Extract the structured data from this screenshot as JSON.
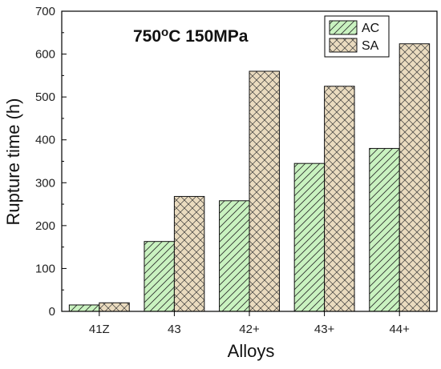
{
  "chart_data": {
    "type": "bar",
    "title": {
      "main": "750",
      "superscript": "o",
      "rest": "C 150MPa"
    },
    "xlabel": "Alloys",
    "ylabel": "Rupture time (h)",
    "categories": [
      "41Z",
      "43",
      "42+",
      "43+",
      "44+"
    ],
    "ylim": [
      0,
      700
    ],
    "yticks": [
      "0",
      "100",
      "200",
      "300",
      "400",
      "500",
      "600",
      "700"
    ],
    "legend_position": "top-right",
    "series": [
      {
        "name": "AC",
        "values": [
          15,
          163,
          258,
          345,
          380
        ],
        "color": "#c9f2c0",
        "pattern": "diagonal-hatch"
      },
      {
        "name": "SA",
        "values": [
          20,
          268,
          560,
          525,
          624
        ],
        "color": "#eadbbf",
        "pattern": "cross-hatch"
      }
    ]
  }
}
